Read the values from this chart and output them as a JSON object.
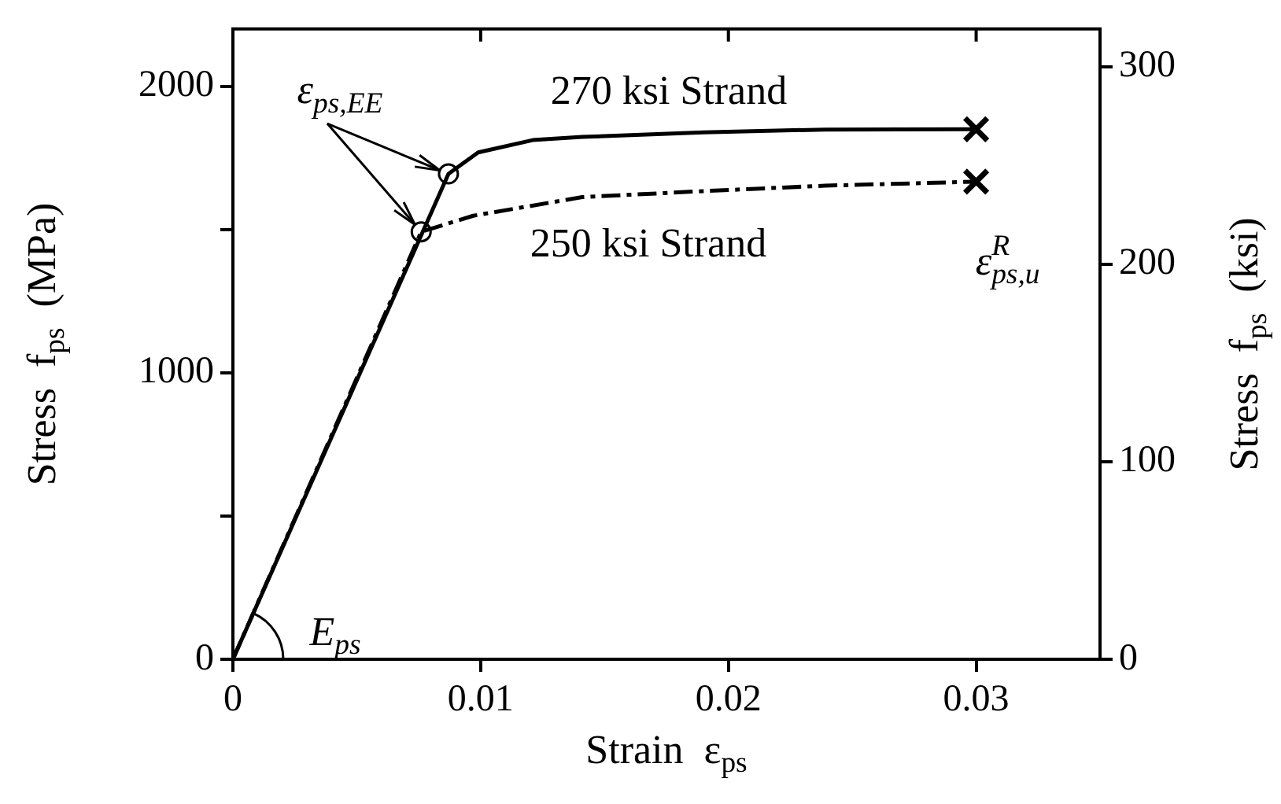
{
  "chart_data": {
    "type": "line",
    "xlabel": "Strain  ε$_{ps}$",
    "ylabel": "Stress  f$_{ps}$  (MPa)",
    "y2label": "Stress  f$_{ps}$  (ksi)",
    "xlim": [
      0,
      0.035
    ],
    "xticks": [
      0,
      0.01,
      0.02,
      0.03
    ],
    "ylim": [
      0,
      2200
    ],
    "yticks": [
      0,
      {
        "value": 500,
        "label": null
      },
      1000,
      {
        "value": 1500,
        "label": null
      },
      2000
    ],
    "y2lim": [
      0,
      319
    ],
    "y2ticks": [
      0,
      100,
      200,
      300
    ],
    "grid": false,
    "legend": false,
    "series": [
      {
        "type": "line",
        "color": "#000000",
        "line_style": "solid",
        "marker": "none",
        "x": [
          0,
          0.0087,
          0.0099,
          0.0121,
          0.0141,
          0.019,
          0.0239,
          0.03
        ],
        "values": [
          0,
          1694,
          1769,
          1812,
          1823,
          1839,
          1849,
          1850
        ]
      },
      {
        "type": "line",
        "color": "#000000",
        "line_style": "dashed",
        "marker": "none",
        "x": [
          0,
          0.0076,
          0.0097,
          0.0141,
          0.019,
          0.0239,
          0.03
        ],
        "values": [
          0,
          1492,
          1548,
          1613,
          1634,
          1653,
          1667
        ]
      },
      {
        "type": "scatter",
        "color": "#000000",
        "marker": "circle",
        "x": [
          0.0087,
          0.0076
        ],
        "values": [
          1694,
          1492
        ]
      },
      {
        "type": "scatter",
        "color": "#000000",
        "marker": "cross",
        "x": [
          0.03,
          0.03
        ],
        "values": [
          1850,
          1667
        ]
      }
    ],
    "annotations": [
      {
        "text": "ε$_{ps,EE}$",
        "x": 0.0087,
        "y": 1694
      },
      {
        "text": "270 ksi Strand",
        "x": 0.0141,
        "y": 1823
      },
      {
        "text": "250 ksi Strand",
        "x": 0.0141,
        "y": 1613
      },
      {
        "text": "ε$_{ps,u}$$^{R}$",
        "x": 0.03,
        "y": 1667
      },
      {
        "text": "E$_{ps}$",
        "x": 0,
        "y": 0
      }
    ]
  }
}
